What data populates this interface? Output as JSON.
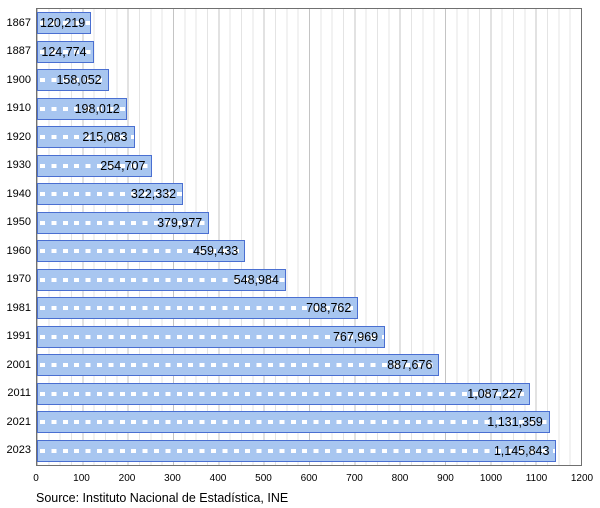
{
  "chart_data": {
    "type": "bar",
    "orientation": "horizontal",
    "title": "",
    "categories": [
      "1867",
      "1887",
      "1900",
      "1910",
      "1920",
      "1930",
      "1940",
      "1950",
      "1960",
      "1970",
      "1981",
      "1991",
      "2001",
      "2011",
      "2021",
      "2023"
    ],
    "values": [
      120219,
      124774,
      158052,
      198012,
      215083,
      254707,
      322332,
      379977,
      459433,
      548984,
      708762,
      767969,
      887676,
      1087227,
      1131359,
      1145843
    ],
    "value_labels": [
      "120,219",
      "124,774",
      "158,052",
      "198,012",
      "215,083",
      "254,707",
      "322,332",
      "379,977",
      "459,433",
      "548,984",
      "708,762",
      "767,969",
      "887,676",
      "1,087,227",
      "1,131,359",
      "1,145,843"
    ],
    "x_ticks": [
      "0",
      "100",
      "200",
      "300",
      "400",
      "500",
      "600",
      "700",
      "800",
      "900",
      "1000",
      "1100",
      "1200"
    ],
    "xlim": [
      0,
      1200000
    ],
    "xmax": 1200000,
    "grid": true,
    "legend": "none",
    "bar_fill_color": "#a8c6f0",
    "bar_border_color": "#4a6fd1",
    "source": "Source: Instituto Nacional de Estadística, INE"
  }
}
